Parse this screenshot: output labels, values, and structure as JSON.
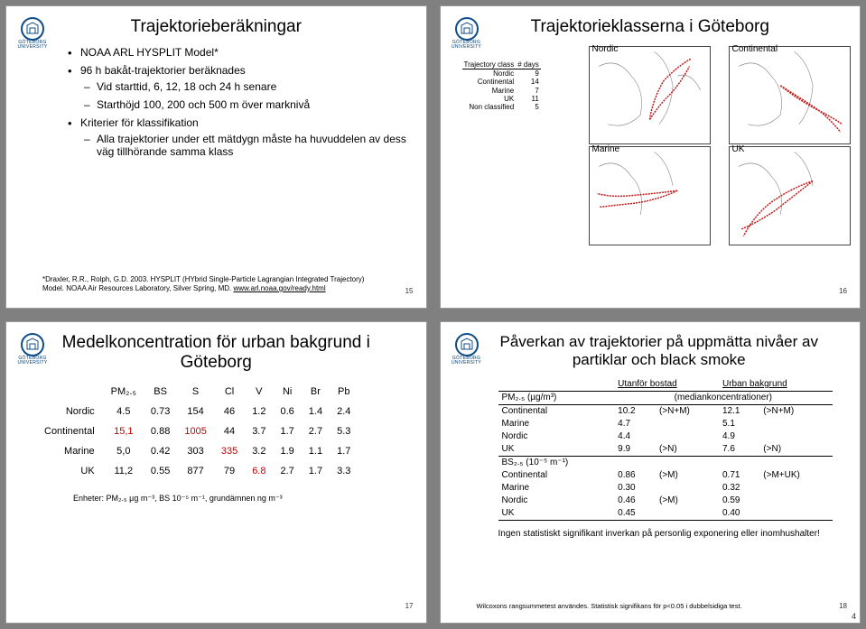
{
  "logo_text": "GÖTEBORG UNIVERSITY",
  "slide1": {
    "title": "Trajektorieberäkningar",
    "b1": "NOAA ARL HYSPLIT Model*",
    "b2": "96 h bakåt-trajektorier beräknades",
    "b2a": "Vid starttid, 6, 12, 18 och 24 h senare",
    "b2b": "Starthöjd 100, 200 och 500 m över marknivå",
    "b3": "Kriterier för klassifikation",
    "b3a": "Alla trajektorier under ett mätdygn måste ha huvuddelen av dess väg tillhörande samma klass",
    "cite": "*Draxler, R.R., Rolph, G.D. 2003. HYSPLIT (HYbrid Single-Particle Lagrangian Integrated Trajectory) Model. NOAA Air Resources Laboratory, Silver Spring, MD. ",
    "cite_link": "www.arl.noaa.gov/ready.html",
    "page": "15"
  },
  "slide2": {
    "title": "Trajektorieklasserna i Göteborg",
    "maps": [
      "Nordic",
      "Continental",
      "Marine",
      "UK"
    ],
    "table": {
      "h1": "Trajectory class",
      "h2": "# days",
      "rows": [
        [
          "Nordic",
          "9"
        ],
        [
          "Continental",
          "14"
        ],
        [
          "Marine",
          "7"
        ],
        [
          "UK",
          "11"
        ],
        [
          "Non classified",
          "5"
        ]
      ]
    },
    "traj_color": "#c51a1a",
    "map_border": "#555",
    "page": "16"
  },
  "slide3": {
    "title": "Medelkoncentration för urban bakgrund i Göteborg",
    "cols": [
      "PM₂.₅",
      "BS",
      "S",
      "Cl",
      "V",
      "Ni",
      "Br",
      "Pb"
    ],
    "rows": [
      {
        "lab": "Nordic",
        "v": [
          "4.5",
          "0.73",
          "154",
          "46",
          "1.2",
          "0.6",
          "1.4",
          "2.4"
        ],
        "hl": []
      },
      {
        "lab": "Continental",
        "v": [
          "15,1",
          "0.88",
          "1005",
          "44",
          "3.7",
          "1.7",
          "2.7",
          "5.3"
        ],
        "hl": [
          0,
          2
        ]
      },
      {
        "lab": "Marine",
        "v": [
          "5,0",
          "0.42",
          "303",
          "335",
          "3.2",
          "1.9",
          "1.1",
          "1.7"
        ],
        "hl": [
          3
        ]
      },
      {
        "lab": "UK",
        "v": [
          "11,2",
          "0.55",
          "877",
          "79",
          "6.8",
          "2.7",
          "1.7",
          "3.3"
        ],
        "hl": [
          4
        ]
      }
    ],
    "units": "Enheter: PM₂.₅ µg m⁻³, BS 10⁻⁵ m⁻¹, grundämnen ng m⁻³",
    "page": "17"
  },
  "slide4": {
    "title": "Påverkan av trajektorier på uppmätta nivåer av partiklar och black smoke",
    "col1": "Utanför bostad",
    "col2": "Urban bakgrund",
    "pmhdr": "PM₂.₅ (µg/m³)",
    "median": "(mediankoncentrationer)",
    "pmrows": [
      [
        "Continental",
        "10.2",
        "(>N+M)",
        "12.1",
        "(>N+M)"
      ],
      [
        "Marine",
        "4.7",
        "",
        "5.1",
        ""
      ],
      [
        "Nordic",
        "4.4",
        "",
        "4.9",
        ""
      ],
      [
        "UK",
        "9.9",
        "(>N)",
        "7.6",
        "(>N)"
      ]
    ],
    "bshdr": "BS₂.₅ (10⁻⁵ m⁻¹)",
    "bsrows": [
      [
        "Continental",
        "0.86",
        "(>M)",
        "0.71",
        "(>M+UK)"
      ],
      [
        "Marine",
        "0.30",
        "",
        "0.32",
        ""
      ],
      [
        "Nordic",
        "0.46",
        "(>M)",
        "0.59",
        ""
      ],
      [
        "UK",
        "0.45",
        "",
        "0.40",
        ""
      ]
    ],
    "note": "Ingen statistiskt signifikant inverkan på personlig exponering eller inomhushalter!",
    "caption": "Wilcoxons rangsummetest användes. Statistisk signifikans för p<0.05 i dubbelsidiga test.",
    "page": "18"
  },
  "footer_pagenum": "4",
  "colors": {
    "highlight": "#c00000",
    "logo": "#0f4c8a"
  }
}
